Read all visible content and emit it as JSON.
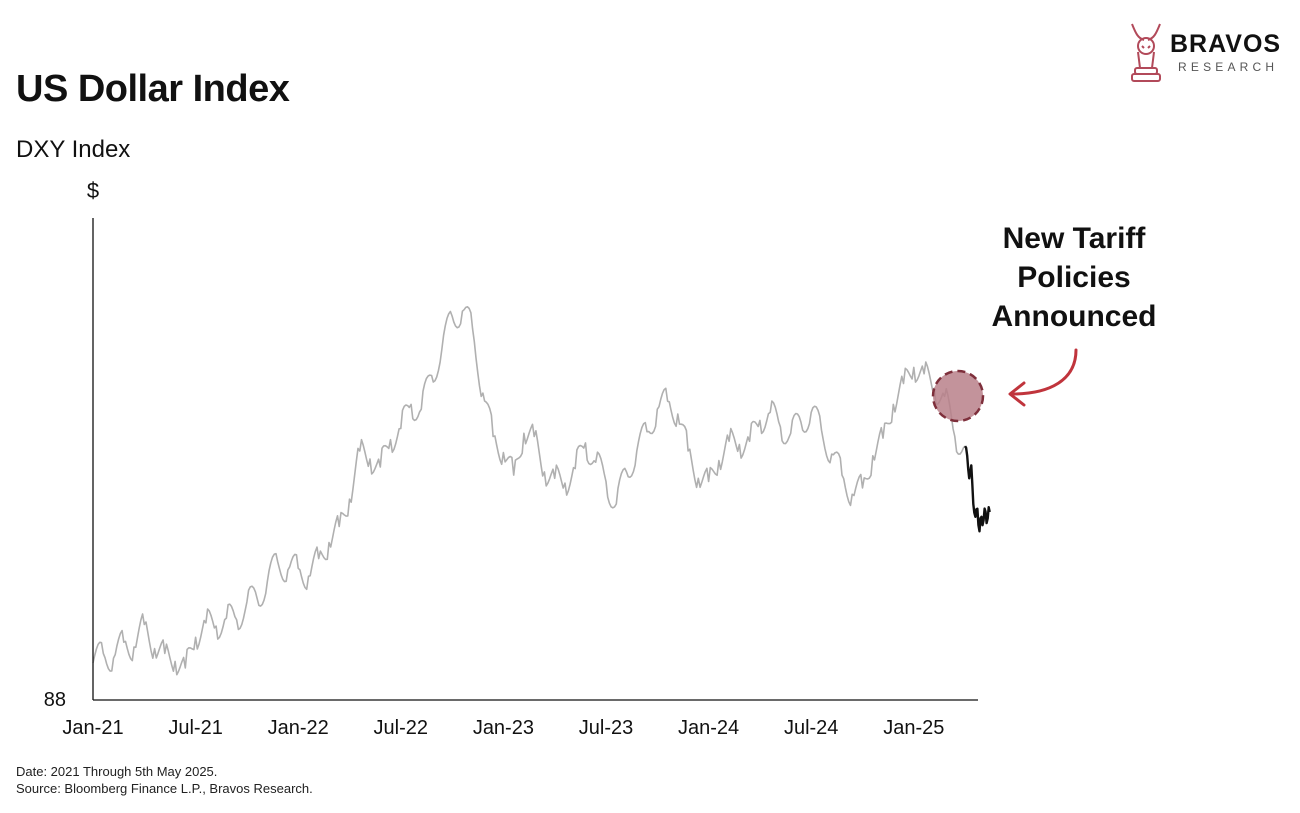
{
  "header": {
    "title": "US Dollar Index",
    "subtitle": "DXY Index"
  },
  "logo": {
    "name": "BRAVOS",
    "tagline": "RESEARCH",
    "icon": "bull-knight-icon",
    "color": "#b24a5a"
  },
  "annotation": {
    "lines": [
      "New Tariff",
      "Policies",
      "Announced"
    ],
    "arrow_color": "#c0343c",
    "marker_fill": "#b98089",
    "marker_stroke": "#7e2f3b"
  },
  "footer": {
    "date_note": "Date: 2021 Through 5th May 2025.",
    "source_note": "Source: Bloomberg Finance L.P., Bravos Research."
  },
  "chart_data": {
    "type": "line",
    "ylabel": "$",
    "ylim": [
      88,
      118
    ],
    "y_tick_labels": [
      "88"
    ],
    "x_tick_labels": [
      "Jan-21",
      "Jul-21",
      "Jan-22",
      "Jul-22",
      "Jan-23",
      "Jul-23",
      "Jan-24",
      "Jul-24",
      "Jan-25"
    ],
    "x_range": [
      2021.0,
      2025.37
    ],
    "series": [
      {
        "color": "#b0b0b0",
        "points": [
          [
            2021.0,
            90.3
          ],
          [
            2021.05,
            90.9
          ],
          [
            2021.1,
            90.6
          ],
          [
            2021.15,
            91.6
          ],
          [
            2021.2,
            91.3
          ],
          [
            2021.25,
            92.7
          ],
          [
            2021.3,
            91.2
          ],
          [
            2021.35,
            90.9
          ],
          [
            2021.4,
            90.4
          ],
          [
            2021.45,
            90.0
          ],
          [
            2021.5,
            91.9
          ],
          [
            2021.55,
            92.8
          ],
          [
            2021.6,
            92.6
          ],
          [
            2021.65,
            93.1
          ],
          [
            2021.7,
            93.0
          ],
          [
            2021.75,
            94.1
          ],
          [
            2021.8,
            94.3
          ],
          [
            2021.85,
            95.4
          ],
          [
            2021.9,
            96.6
          ],
          [
            2021.95,
            96.1
          ],
          [
            2022.0,
            96.2
          ],
          [
            2022.05,
            95.7
          ],
          [
            2022.1,
            96.8
          ],
          [
            2022.15,
            97.8
          ],
          [
            2022.2,
            98.8
          ],
          [
            2022.25,
            100.5
          ],
          [
            2022.3,
            103.5
          ],
          [
            2022.35,
            103.0
          ],
          [
            2022.4,
            102.5
          ],
          [
            2022.45,
            104.2
          ],
          [
            2022.5,
            104.9
          ],
          [
            2022.55,
            106.4
          ],
          [
            2022.6,
            106.1
          ],
          [
            2022.65,
            108.2
          ],
          [
            2022.7,
            109.8
          ],
          [
            2022.75,
            111.9
          ],
          [
            2022.8,
            112.2
          ],
          [
            2022.85,
            111.1
          ],
          [
            2022.9,
            107.1
          ],
          [
            2022.95,
            104.4
          ],
          [
            2023.0,
            103.4
          ],
          [
            2023.05,
            102.0
          ],
          [
            2023.1,
            104.6
          ],
          [
            2023.15,
            104.4
          ],
          [
            2023.2,
            102.2
          ],
          [
            2023.25,
            101.8
          ],
          [
            2023.3,
            101.5
          ],
          [
            2023.35,
            102.4
          ],
          [
            2023.4,
            104.0
          ],
          [
            2023.45,
            102.8
          ],
          [
            2023.5,
            101.6
          ],
          [
            2023.55,
            100.2
          ],
          [
            2023.6,
            102.2
          ],
          [
            2023.65,
            103.5
          ],
          [
            2023.7,
            104.7
          ],
          [
            2023.75,
            106.1
          ],
          [
            2023.8,
            106.6
          ],
          [
            2023.85,
            105.8
          ],
          [
            2023.9,
            103.5
          ],
          [
            2023.95,
            101.8
          ],
          [
            2024.0,
            101.6
          ],
          [
            2024.05,
            102.9
          ],
          [
            2024.1,
            104.1
          ],
          [
            2024.15,
            103.9
          ],
          [
            2024.2,
            104.1
          ],
          [
            2024.25,
            105.4
          ],
          [
            2024.3,
            105.9
          ],
          [
            2024.35,
            105.0
          ],
          [
            2024.4,
            104.6
          ],
          [
            2024.45,
            105.3
          ],
          [
            2024.5,
            105.9
          ],
          [
            2024.55,
            104.8
          ],
          [
            2024.6,
            103.3
          ],
          [
            2024.65,
            102.0
          ],
          [
            2024.7,
            100.8
          ],
          [
            2024.75,
            101.2
          ],
          [
            2024.8,
            103.2
          ],
          [
            2024.85,
            104.3
          ],
          [
            2024.9,
            106.4
          ],
          [
            2024.95,
            107.7
          ],
          [
            2025.0,
            108.7
          ],
          [
            2025.05,
            108.3
          ],
          [
            2025.1,
            107.4
          ],
          [
            2025.15,
            106.9
          ],
          [
            2025.2,
            104.4
          ],
          [
            2025.25,
            103.8
          ]
        ]
      },
      {
        "color": "#111111",
        "points": [
          [
            2025.25,
            103.8
          ],
          [
            2025.26,
            103.2
          ],
          [
            2025.27,
            101.8
          ],
          [
            2025.28,
            102.6
          ],
          [
            2025.29,
            100.2
          ],
          [
            2025.3,
            99.4
          ],
          [
            2025.31,
            99.9
          ],
          [
            2025.32,
            98.5
          ],
          [
            2025.33,
            99.4
          ],
          [
            2025.34,
            99.2
          ],
          [
            2025.35,
            99.7
          ],
          [
            2025.36,
            99.3
          ],
          [
            2025.37,
            99.7
          ]
        ]
      }
    ],
    "marker": {
      "x": 2025.25,
      "y": 104.2
    },
    "grid": false,
    "legend": "none"
  }
}
